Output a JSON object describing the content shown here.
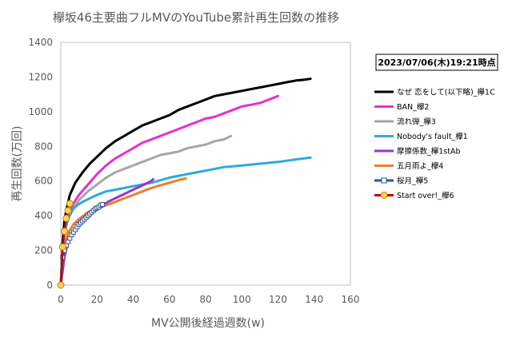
{
  "chart_data": {
    "type": "line",
    "title": "欅坂46主要曲フルMVのYouTube累計再生回数の推移",
    "timestamp": "2023/07/06(木)19:21時点",
    "xlabel": "MV公開後経過週数(w)",
    "ylabel": "再生回数(万回)",
    "xlim": [
      0,
      160
    ],
    "ylim": [
      0,
      1400
    ],
    "xticks": [
      "0",
      "20",
      "40",
      "60",
      "80",
      "100",
      "120",
      "140",
      "160"
    ],
    "yticks": [
      "0",
      "200",
      "400",
      "600",
      "800",
      "1000",
      "1200",
      "1400"
    ],
    "grid": false,
    "legend_position": "right",
    "series": [
      {
        "name": "なぜ 恋をして(以下略)_欅1C",
        "color": "#000000",
        "marker": "none",
        "x": [
          0,
          1,
          2,
          3,
          5,
          8,
          12,
          16,
          20,
          25,
          30,
          35,
          40,
          45,
          50,
          55,
          60,
          65,
          70,
          75,
          80,
          85,
          90,
          95,
          100,
          105,
          110,
          115,
          120,
          125,
          130,
          135,
          138
        ],
        "y": [
          0,
          250,
          370,
          430,
          520,
          590,
          650,
          700,
          740,
          790,
          830,
          860,
          890,
          920,
          940,
          960,
          980,
          1010,
          1030,
          1050,
          1070,
          1090,
          1100,
          1110,
          1120,
          1130,
          1140,
          1150,
          1160,
          1170,
          1180,
          1185,
          1190
        ]
      },
      {
        "name": "BAN_欅2",
        "color": "#e62fd2",
        "marker": "none",
        "x": [
          0,
          1,
          2,
          4,
          7,
          10,
          15,
          20,
          25,
          30,
          35,
          40,
          45,
          50,
          55,
          60,
          65,
          70,
          75,
          80,
          85,
          90,
          95,
          100,
          105,
          110,
          115,
          120
        ],
        "y": [
          0,
          200,
          300,
          400,
          470,
          520,
          580,
          640,
          690,
          730,
          760,
          790,
          820,
          840,
          860,
          880,
          900,
          920,
          940,
          960,
          970,
          990,
          1010,
          1030,
          1040,
          1050,
          1070,
          1090
        ]
      },
      {
        "name": "流れ弾_欅3",
        "color": "#a6a6a6",
        "marker": "none",
        "x": [
          0,
          1,
          2,
          4,
          7,
          10,
          15,
          20,
          25,
          30,
          35,
          40,
          45,
          50,
          55,
          60,
          65,
          70,
          75,
          80,
          85,
          90,
          94
        ],
        "y": [
          0,
          200,
          290,
          380,
          440,
          490,
          540,
          580,
          620,
          650,
          670,
          690,
          710,
          730,
          750,
          760,
          770,
          790,
          800,
          810,
          830,
          840,
          860
        ]
      },
      {
        "name": "Nobody's fault_欅1",
        "color": "#2eaadc",
        "marker": "none",
        "x": [
          0,
          1,
          2,
          4,
          6,
          9,
          12,
          16,
          20,
          25,
          30,
          35,
          40,
          50,
          60,
          70,
          80,
          90,
          100,
          110,
          120,
          130,
          138
        ],
        "y": [
          0,
          200,
          300,
          380,
          430,
          460,
          480,
          500,
          520,
          540,
          550,
          560,
          570,
          590,
          620,
          640,
          660,
          680,
          690,
          700,
          710,
          725,
          735
        ]
      },
      {
        "name": "摩擦係数_欅1stAb",
        "color": "#9933cc",
        "marker": "none",
        "x": [
          0,
          2,
          4,
          7,
          10,
          14,
          18,
          22,
          26,
          30,
          34,
          38,
          42,
          46,
          50,
          51
        ],
        "y": [
          0,
          160,
          250,
          310,
          350,
          390,
          420,
          450,
          480,
          500,
          520,
          540,
          560,
          580,
          600,
          610
        ]
      },
      {
        "name": "五月雨よ_欅4",
        "color": "#ed7d31",
        "marker": "none",
        "x": [
          0,
          1,
          2,
          4,
          7,
          10,
          15,
          20,
          25,
          30,
          35,
          40,
          45,
          50,
          55,
          60,
          65,
          69
        ],
        "y": [
          0,
          160,
          230,
          300,
          350,
          380,
          420,
          440,
          460,
          480,
          500,
          520,
          540,
          560,
          575,
          590,
          605,
          615
        ]
      },
      {
        "name": "桜月_欅5",
        "color": "#2f5597",
        "marker": "square",
        "x": [
          0,
          1,
          2,
          3,
          4,
          5,
          6,
          7,
          8,
          9,
          10,
          11,
          12,
          13,
          14,
          15,
          16,
          17,
          18,
          19,
          20,
          21,
          22,
          23
        ],
        "y": [
          0,
          160,
          200,
          230,
          250,
          270,
          290,
          305,
          320,
          335,
          350,
          360,
          370,
          380,
          390,
          400,
          410,
          420,
          430,
          440,
          445,
          450,
          460,
          465
        ]
      },
      {
        "name": "Start over!_欅6",
        "color": "#c00000",
        "marker_fill": "#ffd54f",
        "marker": "circle",
        "x": [
          0,
          1,
          2,
          3,
          4,
          5
        ],
        "y": [
          0,
          220,
          310,
          385,
          430,
          470
        ]
      }
    ]
  }
}
